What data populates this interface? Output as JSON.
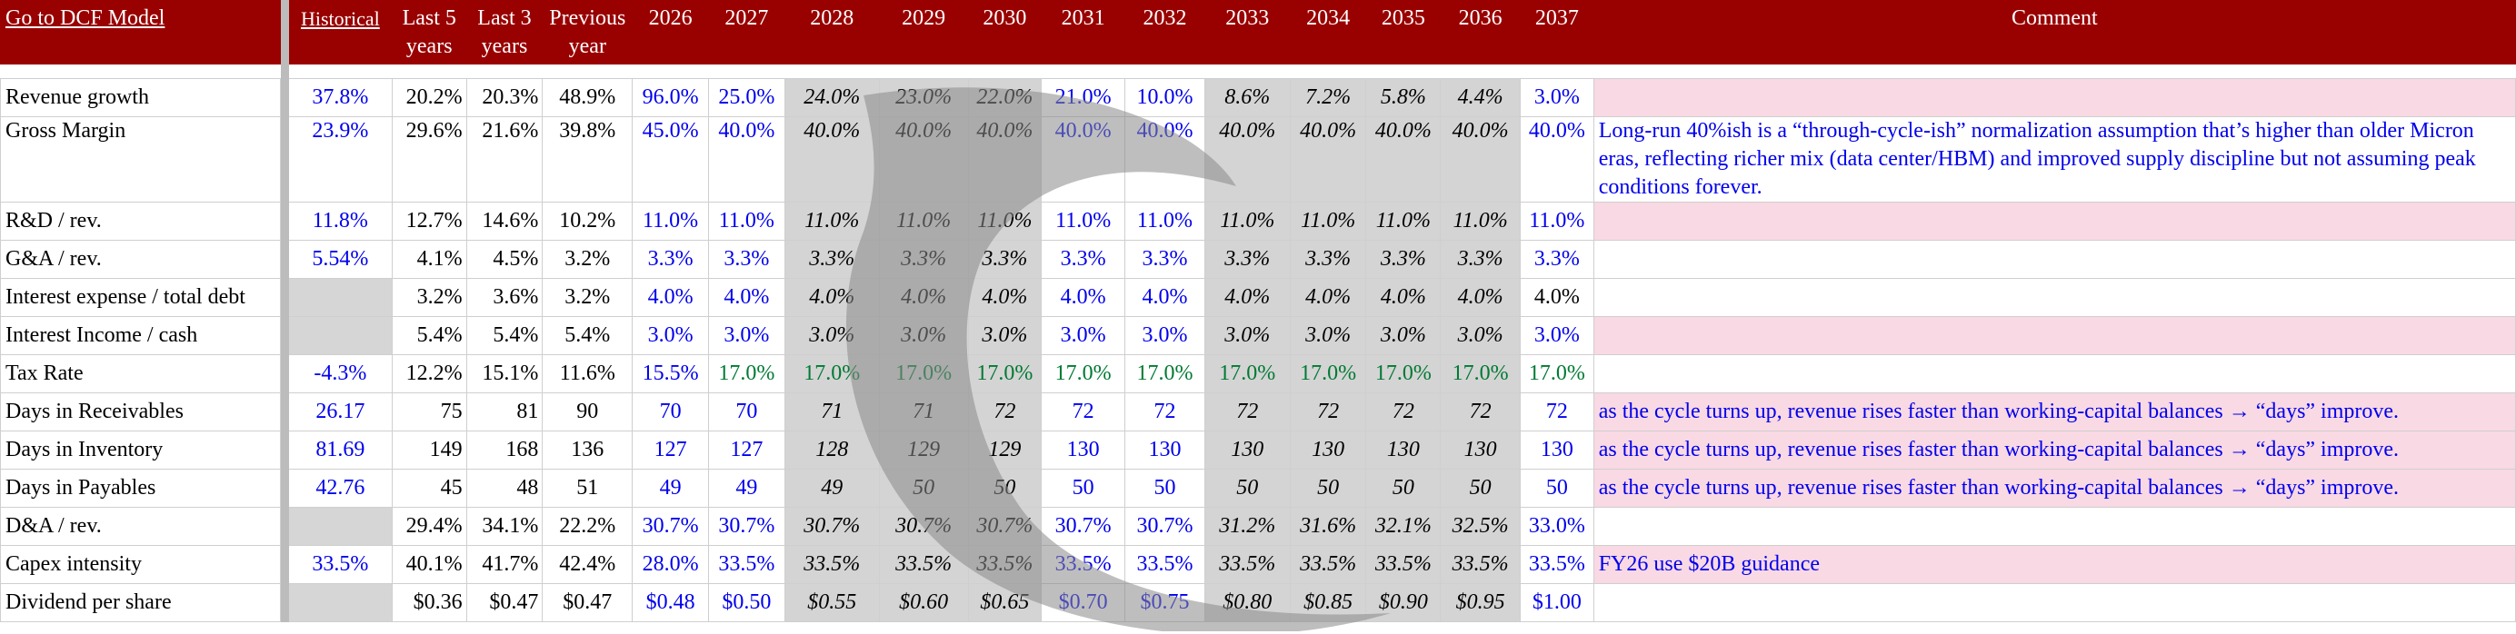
{
  "header": {
    "link_label": "Go to DCF Model",
    "historical_label": "Historical",
    "col_last5": "Last 5 years",
    "col_last3": "Last 3 years",
    "col_prev": "Previous year",
    "years": [
      "2026",
      "2027",
      "2028",
      "2029",
      "2030",
      "2031",
      "2032",
      "2033",
      "2034",
      "2035",
      "2036",
      "2037"
    ],
    "comment_label": "Comment"
  },
  "watermark": "shark-fin-watermark-icon",
  "rows": [
    {
      "label": "Revenue growth",
      "hist": "37.8%",
      "last5": "20.2%",
      "last3": "20.3%",
      "prev": "48.9%",
      "years": [
        "96.0%",
        "25.0%",
        "24.0%",
        "23.0%",
        "22.0%",
        "21.0%",
        "10.0%",
        "8.6%",
        "7.2%",
        "5.8%",
        "4.4%",
        "3.0%"
      ],
      "comment": ""
    },
    {
      "label": "Gross Margin",
      "hist": "23.9%",
      "last5": "29.6%",
      "last3": "21.6%",
      "prev": "39.8%",
      "years": [
        "45.0%",
        "40.0%",
        "40.0%",
        "40.0%",
        "40.0%",
        "40.0%",
        "40.0%",
        "40.0%",
        "40.0%",
        "40.0%",
        "40.0%",
        "40.0%"
      ],
      "comment": "Long-run 40%ish is a “through-cycle-ish” normalization assumption that’s higher than older Micron eras, reflecting richer mix (data center/HBM) and improved supply discipline but not assuming peak conditions forever."
    },
    {
      "label": "R&D / rev.",
      "hist": "11.8%",
      "last5": "12.7%",
      "last3": "14.6%",
      "prev": "10.2%",
      "years": [
        "11.0%",
        "11.0%",
        "11.0%",
        "11.0%",
        "11.0%",
        "11.0%",
        "11.0%",
        "11.0%",
        "11.0%",
        "11.0%",
        "11.0%",
        "11.0%"
      ],
      "comment": ""
    },
    {
      "label": "G&A / rev.",
      "hist": "5.54%",
      "last5": "4.1%",
      "last3": "4.5%",
      "prev": "3.2%",
      "years": [
        "3.3%",
        "3.3%",
        "3.3%",
        "3.3%",
        "3.3%",
        "3.3%",
        "3.3%",
        "3.3%",
        "3.3%",
        "3.3%",
        "3.3%",
        "3.3%"
      ],
      "comment": ""
    },
    {
      "label": "Interest expense / total debt",
      "hist": "",
      "last5": "3.2%",
      "last3": "3.6%",
      "prev": "3.2%",
      "years": [
        "4.0%",
        "4.0%",
        "4.0%",
        "4.0%",
        "4.0%",
        "4.0%",
        "4.0%",
        "4.0%",
        "4.0%",
        "4.0%",
        "4.0%",
        "4.0%"
      ],
      "comment": ""
    },
    {
      "label": "Interest Income / cash",
      "hist": "",
      "last5": "5.4%",
      "last3": "5.4%",
      "prev": "5.4%",
      "years": [
        "3.0%",
        "3.0%",
        "3.0%",
        "3.0%",
        "3.0%",
        "3.0%",
        "3.0%",
        "3.0%",
        "3.0%",
        "3.0%",
        "3.0%",
        "3.0%"
      ],
      "comment": ""
    },
    {
      "label": "Tax Rate",
      "hist": "-4.3%",
      "last5": "12.2%",
      "last3": "15.1%",
      "prev": "11.6%",
      "years": [
        "15.5%",
        "17.0%",
        "17.0%",
        "17.0%",
        "17.0%",
        "17.0%",
        "17.0%",
        "17.0%",
        "17.0%",
        "17.0%",
        "17.0%",
        "17.0%"
      ],
      "comment": ""
    },
    {
      "label": "Days in Receivables",
      "hist": "26.17",
      "last5": "75",
      "last3": "81",
      "prev": "90",
      "years": [
        "70",
        "70",
        "71",
        "71",
        "72",
        "72",
        "72",
        "72",
        "72",
        "72",
        "72",
        "72"
      ],
      "comment": "as the cycle turns up, revenue rises faster than working-capital balances → “days” improve."
    },
    {
      "label": "Days in Inventory",
      "hist": "81.69",
      "last5": "149",
      "last3": "168",
      "prev": "136",
      "years": [
        "127",
        "127",
        "128",
        "129",
        "129",
        "130",
        "130",
        "130",
        "130",
        "130",
        "130",
        "130"
      ],
      "comment": "as the cycle turns up, revenue rises faster than working-capital balances → “days” improve."
    },
    {
      "label": "Days in Payables",
      "hist": "42.76",
      "last5": "45",
      "last3": "48",
      "prev": "51",
      "years": [
        "49",
        "49",
        "49",
        "50",
        "50",
        "50",
        "50",
        "50",
        "50",
        "50",
        "50",
        "50"
      ],
      "comment": "as the cycle turns up, revenue rises faster than working-capital balances → “days” improve."
    },
    {
      "label": "D&A / rev.",
      "hist": "",
      "last5": "29.4%",
      "last3": "34.1%",
      "prev": "22.2%",
      "years": [
        "30.7%",
        "30.7%",
        "30.7%",
        "30.7%",
        "30.7%",
        "30.7%",
        "30.7%",
        "31.2%",
        "31.6%",
        "32.1%",
        "32.5%",
        "33.0%"
      ],
      "comment": ""
    },
    {
      "label": "Capex intensity",
      "hist": "33.5%",
      "last5": "40.1%",
      "last3": "41.7%",
      "prev": "42.4%",
      "years": [
        "28.0%",
        "33.5%",
        "33.5%",
        "33.5%",
        "33.5%",
        "33.5%",
        "33.5%",
        "33.5%",
        "33.5%",
        "33.5%",
        "33.5%",
        "33.5%"
      ],
      "comment": "FY26 use $20B guidance"
    },
    {
      "label": "Dividend per share",
      "hist": "",
      "last5": "$0.36",
      "last3": "$0.47",
      "prev": "$0.47",
      "years": [
        "$0.48",
        "$0.50",
        "$0.55",
        "$0.60",
        "$0.65",
        "$0.70",
        "$0.75",
        "$0.80",
        "$0.85",
        "$0.90",
        "$0.95",
        "$1.00"
      ],
      "comment": ""
    }
  ]
}
